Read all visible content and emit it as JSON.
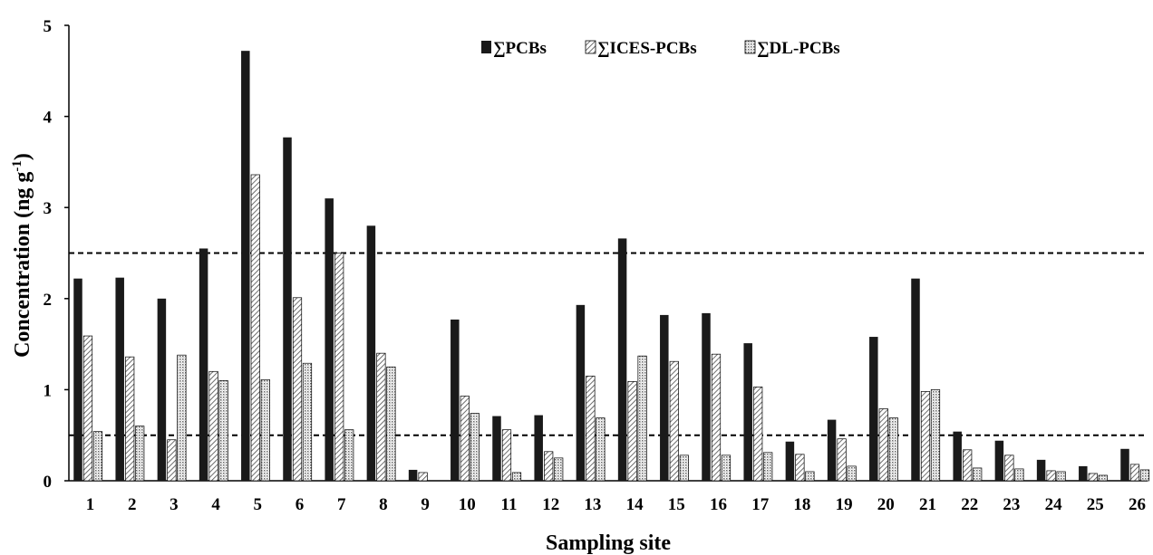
{
  "chart_data": {
    "type": "bar",
    "title": "",
    "xlabel": "Sampling site",
    "ylabel": "Concentration (ng g",
    "ylabel_sup": "-1",
    "ylabel_close": ")",
    "ylim": [
      0,
      5
    ],
    "yticks": [
      0,
      1,
      2,
      3,
      4,
      5
    ],
    "grid": false,
    "legend_position": "top-center",
    "categories": [
      "1",
      "2",
      "3",
      "4",
      "5",
      "6",
      "7",
      "8",
      "9",
      "10",
      "11",
      "12",
      "13",
      "14",
      "15",
      "16",
      "17",
      "18",
      "19",
      "20",
      "21",
      "22",
      "23",
      "24",
      "25",
      "26"
    ],
    "series": [
      {
        "name": "∑PCBs",
        "style": "solid",
        "color": "#1a1a1a",
        "values": [
          2.22,
          2.23,
          2.0,
          2.55,
          4.72,
          3.77,
          3.1,
          2.8,
          0.12,
          1.77,
          0.71,
          0.72,
          1.93,
          2.66,
          1.82,
          1.84,
          1.51,
          0.43,
          0.67,
          1.58,
          2.22,
          0.54,
          0.44,
          0.23,
          0.16,
          0.35
        ]
      },
      {
        "name": "∑ICES-PCBs",
        "style": "diagonal-hatch",
        "color": "#555555",
        "values": [
          1.59,
          1.36,
          0.45,
          1.2,
          3.36,
          2.01,
          2.5,
          1.4,
          0.09,
          0.93,
          0.56,
          0.32,
          1.15,
          1.09,
          1.31,
          1.39,
          1.03,
          0.29,
          0.46,
          0.79,
          0.98,
          0.34,
          0.28,
          0.11,
          0.08,
          0.18
        ]
      },
      {
        "name": "∑DL-PCBs",
        "style": "dotted",
        "color": "#888888",
        "values": [
          0.54,
          0.6,
          1.38,
          1.1,
          1.11,
          1.29,
          0.56,
          1.25,
          0.0,
          0.74,
          0.09,
          0.25,
          0.69,
          1.37,
          0.28,
          0.28,
          0.31,
          0.1,
          0.16,
          0.69,
          1.0,
          0.14,
          0.13,
          0.1,
          0.06,
          0.12
        ]
      }
    ],
    "reference_lines": [
      {
        "y": 2.5,
        "style": "dashed"
      },
      {
        "y": 0.5,
        "style": "dashed"
      }
    ]
  }
}
